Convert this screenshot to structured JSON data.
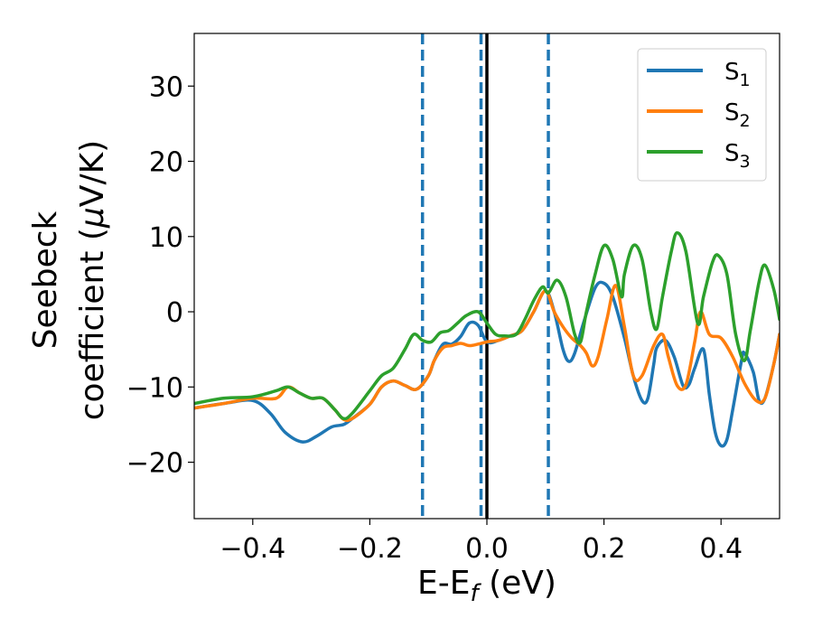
{
  "chart_data": {
    "type": "line",
    "title": "",
    "xlabel": "E-E",
    "xlabel_subscript": "f",
    "xlabel_suffix": " (eV)",
    "ylabel_line1": "Seebeck",
    "ylabel_line2": "coefficient  (",
    "ylabel_mu": "μ",
    "ylabel_suffix": "V/K)",
    "xlim": [
      -0.5,
      0.5
    ],
    "ylim": [
      -27.5,
      37
    ],
    "xticks": [
      -0.4,
      -0.2,
      0.0,
      0.2,
      0.4
    ],
    "xtick_labels": [
      "−0.4",
      "−0.2",
      "0.0",
      "0.2",
      "0.4"
    ],
    "yticks": [
      -20,
      -10,
      0,
      10,
      20,
      30
    ],
    "ytick_labels": [
      "−20",
      "−10",
      "0",
      "10",
      "20",
      "30"
    ],
    "grid": false,
    "legend_position": "top-right",
    "vlines": [
      {
        "x": -0.11,
        "style": "dashed",
        "color": "#1f77b4"
      },
      {
        "x": -0.01,
        "style": "dashed",
        "color": "#1f77b4"
      },
      {
        "x": 0.0,
        "style": "solid",
        "color": "#000000"
      },
      {
        "x": 0.105,
        "style": "dashed",
        "color": "#1f77b4"
      }
    ],
    "series": [
      {
        "name": "S",
        "subscript": "1",
        "color": "#1f77b4",
        "points": [
          [
            -0.5,
            -12.8
          ],
          [
            -0.45,
            -12.2
          ],
          [
            -0.4,
            -11.8
          ],
          [
            -0.37,
            -13.5
          ],
          [
            -0.345,
            -16
          ],
          [
            -0.315,
            -17.3
          ],
          [
            -0.29,
            -16.5
          ],
          [
            -0.265,
            -15.3
          ],
          [
            -0.245,
            -15
          ],
          [
            -0.23,
            -14.2
          ],
          [
            -0.2,
            -12.3
          ],
          [
            -0.18,
            -10
          ],
          [
            -0.16,
            -9.2
          ],
          [
            -0.14,
            -9.8
          ],
          [
            -0.12,
            -10.3
          ],
          [
            -0.1,
            -8.5
          ],
          [
            -0.09,
            -6.5
          ],
          [
            -0.075,
            -4.3
          ],
          [
            -0.06,
            -4.3
          ],
          [
            -0.045,
            -3.3
          ],
          [
            -0.03,
            -1.5
          ],
          [
            -0.015,
            -1.8
          ],
          [
            0.0,
            -4
          ],
          [
            0.02,
            -3.8
          ],
          [
            0.04,
            -3.2
          ],
          [
            0.06,
            -2.5
          ],
          [
            0.08,
            0
          ],
          [
            0.1,
            2.8
          ],
          [
            0.115,
            0
          ],
          [
            0.13,
            -5
          ],
          [
            0.14,
            -6.6
          ],
          [
            0.15,
            -5.5
          ],
          [
            0.165,
            -1.5
          ],
          [
            0.185,
            3.2
          ],
          [
            0.2,
            3.8
          ],
          [
            0.215,
            2
          ],
          [
            0.235,
            -3.5
          ],
          [
            0.25,
            -8.5
          ],
          [
            0.265,
            -11.8
          ],
          [
            0.275,
            -11.5
          ],
          [
            0.285,
            -7
          ],
          [
            0.29,
            -4.8
          ],
          [
            0.305,
            -3.8
          ],
          [
            0.32,
            -6
          ],
          [
            0.335,
            -9.8
          ],
          [
            0.345,
            -9.7
          ],
          [
            0.355,
            -7.5
          ],
          [
            0.37,
            -5
          ],
          [
            0.38,
            -11
          ],
          [
            0.39,
            -16
          ],
          [
            0.4,
            -17.8
          ],
          [
            0.41,
            -17
          ],
          [
            0.42,
            -13
          ],
          [
            0.435,
            -6.5
          ],
          [
            0.44,
            -5.5
          ],
          [
            0.455,
            -8
          ],
          [
            0.465,
            -11.8
          ],
          [
            0.475,
            -11.5
          ],
          [
            0.49,
            -7
          ],
          [
            0.5,
            -3
          ]
        ]
      },
      {
        "name": "S",
        "subscript": "2",
        "color": "#ff7f0e",
        "points": [
          [
            -0.5,
            -12.8
          ],
          [
            -0.45,
            -12.2
          ],
          [
            -0.4,
            -11.5
          ],
          [
            -0.36,
            -11.5
          ],
          [
            -0.34,
            -10
          ],
          [
            -0.32,
            -10.8
          ],
          [
            -0.3,
            -11.5
          ],
          [
            -0.28,
            -11.5
          ],
          [
            -0.26,
            -13
          ],
          [
            -0.245,
            -14.3
          ],
          [
            -0.23,
            -14.2
          ],
          [
            -0.2,
            -12.3
          ],
          [
            -0.18,
            -10
          ],
          [
            -0.16,
            -9.2
          ],
          [
            -0.14,
            -9.8
          ],
          [
            -0.12,
            -10.3
          ],
          [
            -0.1,
            -8.5
          ],
          [
            -0.09,
            -6.5
          ],
          [
            -0.075,
            -4.8
          ],
          [
            -0.06,
            -4.5
          ],
          [
            -0.045,
            -4.2
          ],
          [
            -0.03,
            -4.5
          ],
          [
            -0.015,
            -4.3
          ],
          [
            0.0,
            -4
          ],
          [
            0.02,
            -3.8
          ],
          [
            0.04,
            -3.2
          ],
          [
            0.06,
            -2.5
          ],
          [
            0.08,
            0
          ],
          [
            0.1,
            2.8
          ],
          [
            0.115,
            0
          ],
          [
            0.13,
            -2
          ],
          [
            0.145,
            -3.5
          ],
          [
            0.16,
            -4.5
          ],
          [
            0.17,
            -5.5
          ],
          [
            0.18,
            -7.2
          ],
          [
            0.19,
            -6
          ],
          [
            0.205,
            -1
          ],
          [
            0.22,
            3.5
          ],
          [
            0.235,
            -2
          ],
          [
            0.25,
            -8.5
          ],
          [
            0.265,
            -8.5
          ],
          [
            0.285,
            -4.5
          ],
          [
            0.3,
            -3
          ],
          [
            0.31,
            -6
          ],
          [
            0.325,
            -9.8
          ],
          [
            0.34,
            -9.7
          ],
          [
            0.355,
            -4
          ],
          [
            0.365,
            0
          ],
          [
            0.38,
            -3
          ],
          [
            0.4,
            -3.5
          ],
          [
            0.42,
            -6
          ],
          [
            0.44,
            -9.5
          ],
          [
            0.46,
            -11.8
          ],
          [
            0.475,
            -11.5
          ],
          [
            0.49,
            -7
          ],
          [
            0.5,
            -3
          ]
        ]
      },
      {
        "name": "S",
        "subscript": "3",
        "color": "#2ca02c",
        "points": [
          [
            -0.5,
            -12.2
          ],
          [
            -0.45,
            -11.5
          ],
          [
            -0.4,
            -11.3
          ],
          [
            -0.36,
            -10.5
          ],
          [
            -0.34,
            -10
          ],
          [
            -0.32,
            -10.8
          ],
          [
            -0.3,
            -11.5
          ],
          [
            -0.28,
            -11.5
          ],
          [
            -0.26,
            -13
          ],
          [
            -0.245,
            -14.2
          ],
          [
            -0.23,
            -13.5
          ],
          [
            -0.2,
            -10.5
          ],
          [
            -0.18,
            -8.5
          ],
          [
            -0.16,
            -7.5
          ],
          [
            -0.14,
            -5
          ],
          [
            -0.125,
            -3
          ],
          [
            -0.11,
            -3.8
          ],
          [
            -0.095,
            -4
          ],
          [
            -0.08,
            -2.8
          ],
          [
            -0.065,
            -2.5
          ],
          [
            -0.05,
            -1.5
          ],
          [
            -0.035,
            -0.5
          ],
          [
            -0.015,
            0
          ],
          [
            0.0,
            -1.5
          ],
          [
            0.015,
            -3
          ],
          [
            0.03,
            -3.2
          ],
          [
            0.05,
            -3
          ],
          [
            0.065,
            -1
          ],
          [
            0.08,
            1.5
          ],
          [
            0.095,
            3.3
          ],
          [
            0.105,
            2.5
          ],
          [
            0.12,
            4.2
          ],
          [
            0.135,
            2
          ],
          [
            0.15,
            -3
          ],
          [
            0.16,
            -4
          ],
          [
            0.17,
            0
          ],
          [
            0.185,
            5
          ],
          [
            0.2,
            8.8
          ],
          [
            0.215,
            7
          ],
          [
            0.23,
            2
          ],
          [
            0.235,
            5
          ],
          [
            0.25,
            8.8
          ],
          [
            0.265,
            7
          ],
          [
            0.28,
            0
          ],
          [
            0.29,
            -2.3
          ],
          [
            0.3,
            2
          ],
          [
            0.315,
            8
          ],
          [
            0.325,
            10.5
          ],
          [
            0.34,
            8
          ],
          [
            0.36,
            -1.5
          ],
          [
            0.37,
            2
          ],
          [
            0.385,
            6.5
          ],
          [
            0.395,
            7.5
          ],
          [
            0.41,
            5
          ],
          [
            0.425,
            -3
          ],
          [
            0.44,
            -6.5
          ],
          [
            0.45,
            -2.5
          ],
          [
            0.465,
            4
          ],
          [
            0.475,
            6.2
          ],
          [
            0.49,
            3
          ],
          [
            0.5,
            -1
          ]
        ]
      }
    ]
  }
}
